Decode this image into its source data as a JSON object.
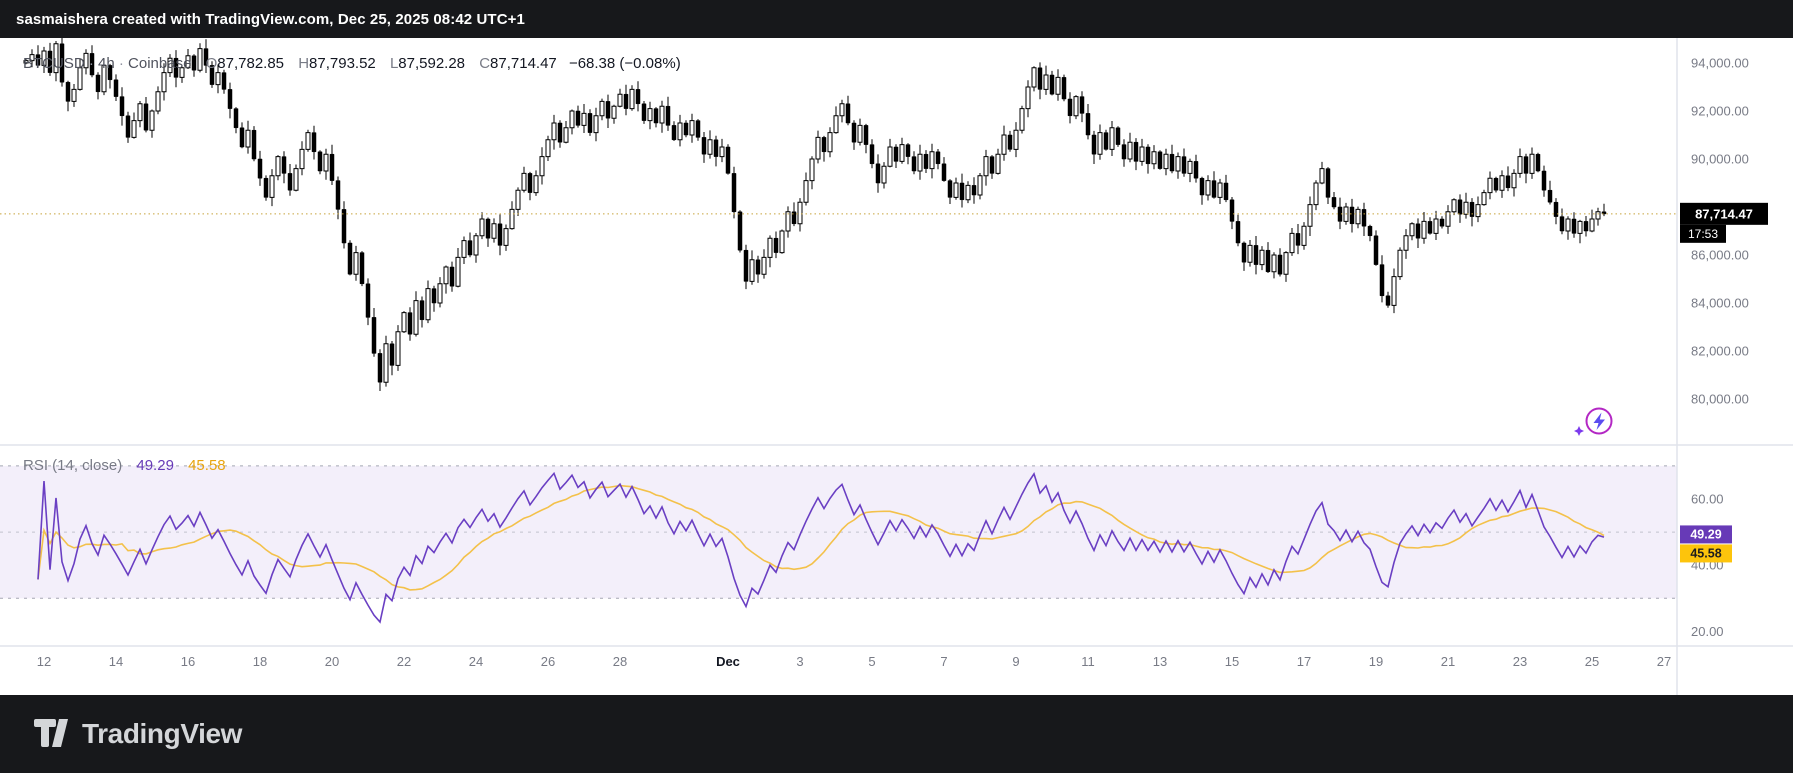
{
  "attribution": "sasmaishera created with TradingView.com, Dec 25, 2025 08:42 UTC+1",
  "legend": {
    "symbol": "BTCUSD",
    "sep": "·",
    "interval": "4h",
    "exchange": "Coinbase",
    "o_label": "O",
    "o_value": "87,782.85",
    "h_label": "H",
    "h_value": "87,793.52",
    "l_label": "L",
    "l_value": "87,592.28",
    "c_label": "C",
    "c_value": "87,714.47",
    "change": "−68.38 (−0.08%)"
  },
  "rsi_legend": {
    "title": "RSI (14, close)",
    "rsi_value": "49.29",
    "ma_value": "45.58"
  },
  "footer": {
    "brand": "TradingView"
  },
  "colors": {
    "chrome_bg": "#17181b",
    "chart_bg": "#ffffff",
    "candle": "#000000",
    "axis_text": "#787b86",
    "text_dark": "#131722",
    "grid_line": "#e0e3eb",
    "price_line": "#c7a33b",
    "price_badge_bg": "#000000",
    "price_badge_text": "#ffffff",
    "rsi_line": "#6a3fc3",
    "rsi_badge_bg": "#673ab7",
    "ma_line": "#f3c14a",
    "ma_badge_bg": "#fdc40c",
    "band_fill": "#f3effa",
    "band_line": "#9b9eab",
    "boost_icon": "#b327c4"
  },
  "chart_data": {
    "type": "candlestick",
    "title": "BTCUSD 4h Coinbase with RSI(14) pane",
    "symbol": "BTCUSD",
    "interval": "4h",
    "exchange": "Coinbase",
    "current_bar": {
      "open": 87782.85,
      "high": 87793.52,
      "low": 87592.28,
      "close": 87714.47,
      "change": -68.38,
      "change_pct": -0.08
    },
    "price_axis": {
      "min": 78125,
      "max": 95040,
      "last_price": 87714.47,
      "badge": {
        "label": "87,714.47",
        "countdown": "17:53"
      },
      "ticks": [
        {
          "v": 94000,
          "label": "94,000.00"
        },
        {
          "v": 92000,
          "label": "92,000.00"
        },
        {
          "v": 90000,
          "label": "90,000.00"
        },
        {
          "v": 86000,
          "label": "86,000.00"
        },
        {
          "v": 84000,
          "label": "84,000.00"
        },
        {
          "v": 82000,
          "label": "82,000.00"
        },
        {
          "v": 80000,
          "label": "80,000.00"
        }
      ]
    },
    "rsi_pane": {
      "min": 17.4,
      "max": 76,
      "rsi_length": 14,
      "ma_length": 14,
      "rsi_last": 49.29,
      "ma_last": 45.58,
      "bands": [
        70,
        50,
        30
      ],
      "ticks": [
        {
          "v": 60,
          "label": "60.00"
        },
        {
          "v": 40,
          "label": "40.00"
        },
        {
          "v": 20,
          "label": "20.00"
        }
      ],
      "badges": {
        "rsi": "49.29",
        "ma": "45.58"
      }
    },
    "time_axis": {
      "ticks": [
        {
          "label": "12",
          "offset": 0,
          "bold": false
        },
        {
          "label": "14",
          "offset": 2,
          "bold": false
        },
        {
          "label": "16",
          "offset": 4,
          "bold": false
        },
        {
          "label": "18",
          "offset": 6,
          "bold": false
        },
        {
          "label": "20",
          "offset": 8,
          "bold": false
        },
        {
          "label": "22",
          "offset": 10,
          "bold": false
        },
        {
          "label": "24",
          "offset": 12,
          "bold": false
        },
        {
          "label": "26",
          "offset": 14,
          "bold": false
        },
        {
          "label": "28",
          "offset": 16,
          "bold": false
        },
        {
          "label": "Dec",
          "offset": 19,
          "bold": true
        },
        {
          "label": "3",
          "offset": 21,
          "bold": false
        },
        {
          "label": "5",
          "offset": 23,
          "bold": false
        },
        {
          "label": "7",
          "offset": 25,
          "bold": false
        },
        {
          "label": "9",
          "offset": 27,
          "bold": false
        },
        {
          "label": "11",
          "offset": 29,
          "bold": false
        },
        {
          "label": "13",
          "offset": 31,
          "bold": false
        },
        {
          "label": "15",
          "offset": 33,
          "bold": false
        },
        {
          "label": "17",
          "offset": 35,
          "bold": false
        },
        {
          "label": "19",
          "offset": 37,
          "bold": false
        },
        {
          "label": "21",
          "offset": 39,
          "bold": false
        },
        {
          "label": "23",
          "offset": 41,
          "bold": false
        },
        {
          "label": "25",
          "offset": 43,
          "bold": false
        },
        {
          "label": "27",
          "offset": 45,
          "bold": false
        }
      ]
    },
    "first_open": 94000,
    "closes": [
      94100,
      94350,
      93900,
      94500,
      93600,
      94800,
      93200,
      92400,
      92900,
      93800,
      94400,
      93500,
      92800,
      93900,
      93300,
      92600,
      91800,
      90900,
      91600,
      92300,
      91200,
      92000,
      92800,
      93600,
      94200,
      93400,
      93800,
      94300,
      93700,
      94600,
      93900,
      93100,
      93600,
      92900,
      92100,
      91300,
      90500,
      91200,
      90000,
      89200,
      88400,
      89300,
      90100,
      89400,
      88700,
      89600,
      90400,
      91100,
      90300,
      89500,
      90200,
      89100,
      87900,
      86500,
      85200,
      86100,
      84800,
      83400,
      81900,
      80700,
      82300,
      81400,
      82800,
      83600,
      82700,
      84100,
      83300,
      84600,
      84000,
      84800,
      85500,
      84700,
      85900,
      86600,
      86000,
      86800,
      87500,
      86700,
      87300,
      86400,
      87100,
      87900,
      88700,
      89400,
      88600,
      89300,
      90100,
      90800,
      91500,
      90700,
      91300,
      92000,
      91400,
      91900,
      91100,
      91800,
      92400,
      91700,
      92200,
      92700,
      92100,
      92900,
      92300,
      91600,
      92100,
      91500,
      92200,
      91400,
      90800,
      91500,
      91000,
      91600,
      90900,
      90200,
      90800,
      90100,
      90500,
      89400,
      87800,
      86200,
      84900,
      85800,
      85200,
      85900,
      86700,
      86100,
      87000,
      87800,
      87300,
      88200,
      89100,
      90000,
      90900,
      90300,
      91100,
      91800,
      92300,
      91500,
      90700,
      91400,
      90600,
      89800,
      89000,
      89700,
      90500,
      89900,
      90600,
      90100,
      89500,
      90200,
      89600,
      90300,
      89800,
      89100,
      88400,
      89000,
      88300,
      88900,
      88500,
      89300,
      90100,
      89400,
      90200,
      91000,
      90400,
      91200,
      92100,
      93000,
      93800,
      92900,
      93500,
      92700,
      93400,
      92500,
      91800,
      92600,
      91900,
      91000,
      90200,
      91100,
      90400,
      91300,
      90600,
      90000,
      90700,
      89900,
      90500,
      89800,
      90300,
      89600,
      90200,
      89500,
      90100,
      89400,
      89900,
      89200,
      88500,
      89100,
      88400,
      89000,
      88300,
      87400,
      86500,
      85700,
      86400,
      85600,
      86200,
      85300,
      86000,
      85200,
      86100,
      86900,
      86400,
      87200,
      88100,
      89000,
      89600,
      88400,
      88000,
      87400,
      88000,
      87300,
      87900,
      87200,
      86800,
      85600,
      84300,
      83900,
      85100,
      86200,
      86800,
      87300,
      86700,
      87400,
      86900,
      87500,
      87200,
      87800,
      88300,
      87700,
      88200,
      87600,
      88100,
      88600,
      89200,
      88700,
      89300,
      88800,
      89400,
      90100,
      89400,
      90200,
      89500,
      88700,
      88200,
      87600,
      87000,
      87500,
      86900,
      87400,
      87000,
      87500,
      87800,
      87714.47
    ]
  }
}
